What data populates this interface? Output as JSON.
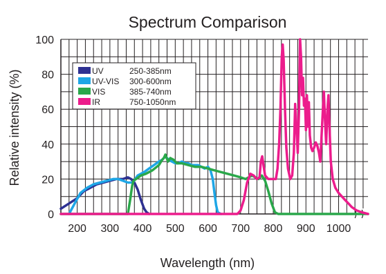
{
  "chart_data": {
    "type": "line",
    "title": "Spectrum Comparison",
    "xlabel": "Wavelength (nm)",
    "ylabel": "Relative intensity (%)",
    "xlim": [
      150,
      1090
    ],
    "ylim": [
      0,
      100
    ],
    "x_ticks": [
      200,
      300,
      400,
      500,
      600,
      700,
      800,
      900,
      1000
    ],
    "x_tick_labels": [
      "200",
      "300",
      "400",
      "500",
      "600",
      "700",
      "800",
      "900",
      "1000"
    ],
    "y_ticks": [
      0,
      20,
      40,
      60,
      80,
      100
    ],
    "y_tick_labels": [
      "0",
      "20",
      "40",
      "60",
      "80",
      "100"
    ],
    "grid": true,
    "axis_break": "right end of x-axis",
    "legend_position": "upper-left",
    "legend": [
      {
        "name": "UV",
        "range": "250-385nm",
        "color": "#2e3192"
      },
      {
        "name": "UV-VIS",
        "range": "300-600nm",
        "color": "#1ea6e6"
      },
      {
        "name": "VIS",
        "range": "385-740nm",
        "color": "#2aa74a"
      },
      {
        "name": "IR",
        "range": "750-1050nm",
        "color": "#ec1c8c"
      }
    ],
    "series": [
      {
        "name": "UV",
        "color": "#2e3192",
        "points": [
          [
            150,
            3
          ],
          [
            175,
            6
          ],
          [
            200,
            9
          ],
          [
            220,
            13
          ],
          [
            240,
            15
          ],
          [
            260,
            17
          ],
          [
            280,
            18
          ],
          [
            300,
            19
          ],
          [
            320,
            20
          ],
          [
            340,
            20
          ],
          [
            355,
            21
          ],
          [
            365,
            20
          ],
          [
            375,
            18
          ],
          [
            385,
            14
          ],
          [
            395,
            8
          ],
          [
            405,
            3
          ],
          [
            412,
            1
          ],
          [
            420,
            0
          ]
        ]
      },
      {
        "name": "UV-VIS",
        "color": "#1ea6e6",
        "points": [
          [
            175,
            0
          ],
          [
            195,
            7
          ],
          [
            210,
            12
          ],
          [
            230,
            15
          ],
          [
            250,
            17
          ],
          [
            270,
            18
          ],
          [
            290,
            19
          ],
          [
            310,
            20
          ],
          [
            325,
            20
          ],
          [
            340,
            19
          ],
          [
            355,
            18
          ],
          [
            370,
            18
          ],
          [
            385,
            22
          ],
          [
            395,
            23
          ],
          [
            405,
            24
          ],
          [
            420,
            26
          ],
          [
            435,
            28
          ],
          [
            450,
            30
          ],
          [
            460,
            31
          ],
          [
            470,
            33
          ],
          [
            480,
            31
          ],
          [
            490,
            30
          ],
          [
            500,
            29
          ],
          [
            510,
            29
          ],
          [
            520,
            30
          ],
          [
            530,
            29
          ],
          [
            540,
            29
          ],
          [
            550,
            28
          ],
          [
            560,
            28
          ],
          [
            570,
            28
          ],
          [
            580,
            27
          ],
          [
            590,
            26
          ],
          [
            600,
            27
          ],
          [
            608,
            25
          ],
          [
            615,
            20
          ],
          [
            620,
            12
          ],
          [
            625,
            5
          ],
          [
            630,
            1
          ],
          [
            640,
            0
          ]
        ]
      },
      {
        "name": "VIS",
        "color": "#2aa74a",
        "points": [
          [
            150,
            0
          ],
          [
            355,
            0
          ],
          [
            362,
            8
          ],
          [
            368,
            16
          ],
          [
            372,
            19
          ],
          [
            380,
            20
          ],
          [
            395,
            22
          ],
          [
            410,
            23
          ],
          [
            430,
            25
          ],
          [
            450,
            28
          ],
          [
            460,
            31
          ],
          [
            465,
            32
          ],
          [
            470,
            34
          ],
          [
            478,
            30
          ],
          [
            485,
            32
          ],
          [
            495,
            31
          ],
          [
            505,
            29
          ],
          [
            520,
            29
          ],
          [
            540,
            28
          ],
          [
            560,
            27
          ],
          [
            580,
            27
          ],
          [
            600,
            26
          ],
          [
            620,
            25
          ],
          [
            640,
            24
          ],
          [
            660,
            23
          ],
          [
            680,
            22
          ],
          [
            700,
            21
          ],
          [
            715,
            20
          ],
          [
            725,
            21
          ],
          [
            735,
            22
          ],
          [
            745,
            21
          ],
          [
            755,
            20
          ],
          [
            765,
            22
          ],
          [
            775,
            19
          ],
          [
            785,
            13
          ],
          [
            795,
            6
          ],
          [
            805,
            1
          ],
          [
            815,
            0
          ],
          [
            1090,
            0
          ]
        ]
      },
      {
        "name": "IR",
        "color": "#ec1c8c",
        "points": [
          [
            150,
            0
          ],
          [
            690,
            0
          ],
          [
            700,
            2
          ],
          [
            710,
            8
          ],
          [
            720,
            18
          ],
          [
            730,
            23
          ],
          [
            740,
            22
          ],
          [
            750,
            20
          ],
          [
            758,
            21
          ],
          [
            762,
            30
          ],
          [
            766,
            33
          ],
          [
            770,
            28
          ],
          [
            775,
            22
          ],
          [
            785,
            20
          ],
          [
            800,
            20
          ],
          [
            808,
            20
          ],
          [
            813,
            26
          ],
          [
            818,
            40
          ],
          [
            822,
            60
          ],
          [
            826,
            90
          ],
          [
            829,
            97
          ],
          [
            832,
            88
          ],
          [
            836,
            60
          ],
          [
            840,
            38
          ],
          [
            845,
            26
          ],
          [
            852,
            20
          ],
          [
            858,
            22
          ],
          [
            863,
            35
          ],
          [
            867,
            63
          ],
          [
            871,
            50
          ],
          [
            875,
            35
          ],
          [
            879,
            60
          ],
          [
            882,
            100
          ],
          [
            885,
            90
          ],
          [
            888,
            68
          ],
          [
            891,
            78
          ],
          [
            894,
            62
          ],
          [
            897,
            66
          ],
          [
            900,
            48
          ],
          [
            903,
            68
          ],
          [
            906,
            50
          ],
          [
            909,
            64
          ],
          [
            912,
            45
          ],
          [
            916,
            38
          ],
          [
            920,
            36
          ],
          [
            925,
            38
          ],
          [
            930,
            41
          ],
          [
            935,
            39
          ],
          [
            940,
            35
          ],
          [
            944,
            30
          ],
          [
            948,
            45
          ],
          [
            952,
            60
          ],
          [
            955,
            70
          ],
          [
            958,
            55
          ],
          [
            962,
            40
          ],
          [
            966,
            60
          ],
          [
            969,
            68
          ],
          [
            972,
            50
          ],
          [
            976,
            30
          ],
          [
            982,
            20
          ],
          [
            990,
            15
          ],
          [
            1000,
            12
          ],
          [
            1010,
            10
          ],
          [
            1020,
            8
          ],
          [
            1030,
            6
          ],
          [
            1040,
            4
          ],
          [
            1055,
            2
          ],
          [
            1070,
            1
          ],
          [
            1090,
            0
          ]
        ]
      }
    ]
  }
}
